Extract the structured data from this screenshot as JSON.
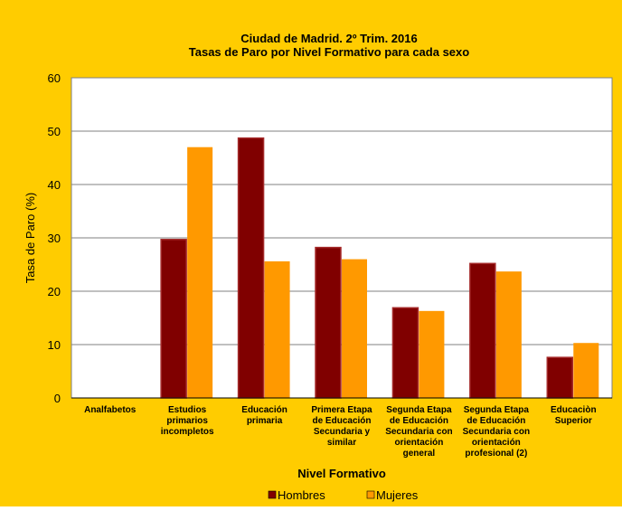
{
  "colors": {
    "background": "#FFCC00",
    "plot_area": "#FFFFFF",
    "gridline": "#808080",
    "hombres": "#800000",
    "mujeres": "#FF9900"
  },
  "chart_data": {
    "type": "bar",
    "title_lines": [
      "Ciudad de Madrid. 2º Trim. 2016",
      "Tasas de Paro por Nivel Formativo para cada sexo"
    ],
    "xlabel": "Nivel Formativo",
    "ylabel": "Tasa de Paro (%)",
    "ylim": [
      0,
      60
    ],
    "yticks": [
      0,
      10,
      20,
      30,
      40,
      50,
      60
    ],
    "grid": true,
    "legend_position": "bottom",
    "categories": [
      [
        "Analfabetos"
      ],
      [
        "Estudios",
        "primarios",
        "incompletos"
      ],
      [
        "Educación",
        "primaria"
      ],
      [
        "Primera Etapa",
        "de Educación",
        "Secundaria y",
        "similar"
      ],
      [
        "Segunda Etapa",
        "de Educación",
        "Secundaria con",
        "orientación",
        "general"
      ],
      [
        "Segunda Etapa",
        "de Educación",
        "Secundaria con",
        "orientación",
        "profesional (2)"
      ],
      [
        "Educaciòn",
        "Superior"
      ]
    ],
    "series": [
      {
        "name": "Hombres",
        "color": "#800000",
        "values": [
          0,
          29.7,
          48.7,
          28.2,
          16.9,
          25.2,
          7.6
        ]
      },
      {
        "name": "Mujeres",
        "color": "#FF9900",
        "values": [
          0,
          47.0,
          25.6,
          26.0,
          16.3,
          23.7,
          10.3
        ]
      }
    ]
  }
}
